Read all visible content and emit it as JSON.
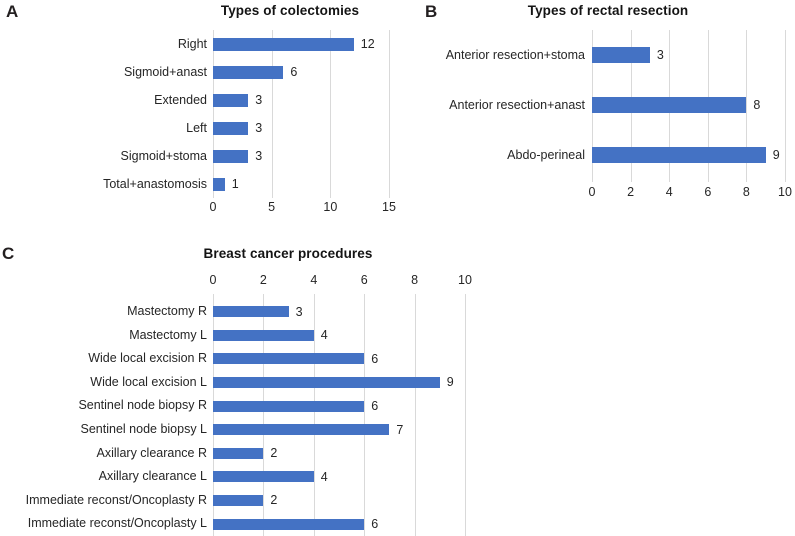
{
  "figure": {
    "panels": [
      {
        "letter": "A"
      },
      {
        "letter": "B"
      },
      {
        "letter": "C"
      }
    ]
  },
  "chart_data": [
    {
      "type": "bar",
      "orientation": "horizontal",
      "title": "Types of colectomies",
      "categories": [
        "Right",
        "Sigmoid+anast",
        "Extended",
        "Left",
        "Sigmoid+stoma",
        "Total+anastomosis"
      ],
      "values": [
        12,
        6,
        3,
        3,
        3,
        1
      ],
      "xlim": [
        0,
        15
      ],
      "xticks": [
        0,
        5,
        10,
        15
      ],
      "axis_position": "bottom",
      "grid": true,
      "data_labels": true
    },
    {
      "type": "bar",
      "orientation": "horizontal",
      "title": "Types of rectal resection",
      "categories": [
        "Anterior resection+stoma",
        "Anterior resection+anast",
        "Abdo-perineal"
      ],
      "values": [
        3,
        8,
        9
      ],
      "xlim": [
        0,
        10
      ],
      "xticks": [
        0,
        2,
        4,
        6,
        8,
        10
      ],
      "axis_position": "bottom",
      "grid": true,
      "data_labels": true
    },
    {
      "type": "bar",
      "orientation": "horizontal",
      "title": "Breast cancer procedures",
      "categories": [
        "Mastectomy R",
        "Mastectomy L",
        "Wide local excision R",
        "Wide local excision L",
        "Sentinel node biopsy R",
        "Sentinel node biopsy L",
        "Axillary clearance R",
        "Axillary clearance L",
        "Immediate reconst/Oncoplasty R",
        "Immediate reconst/Oncoplasty L"
      ],
      "values": [
        3,
        4,
        6,
        9,
        6,
        7,
        2,
        4,
        2,
        6
      ],
      "xlim": [
        0,
        10
      ],
      "xticks": [
        0,
        2,
        4,
        6,
        8,
        10
      ],
      "axis_position": "top",
      "grid": true,
      "data_labels": true
    }
  ],
  "colors": {
    "bar": "#4472C4",
    "gridline": "#D9D9D9",
    "text": "#262626",
    "title": "#141414"
  }
}
